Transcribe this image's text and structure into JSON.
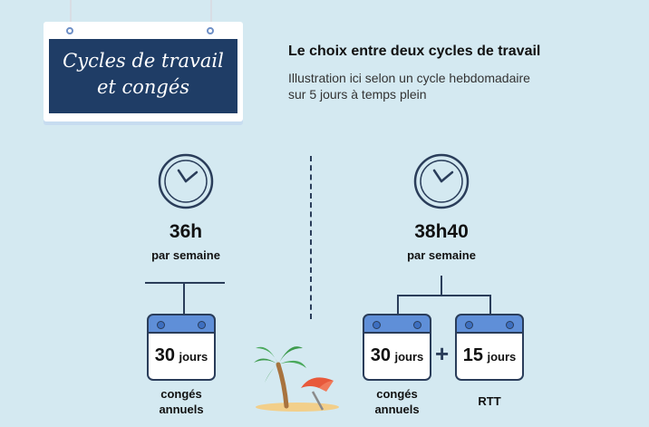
{
  "sign": {
    "line1": "Cycles de travail",
    "line2": "et congés"
  },
  "heading": "Le choix entre deux cycles de travail",
  "description_lines": [
    "Illustration ici selon un cycle hebdomadaire",
    "sur 5 jours à temps plein"
  ],
  "left": {
    "hours": "36h",
    "per": "par semaine",
    "calendar": {
      "number": "30",
      "unit": "jours",
      "label_line1": "congés",
      "label_line2": "annuels"
    }
  },
  "right": {
    "hours": "38h40",
    "per": "par semaine",
    "plus": "+",
    "calendars": [
      {
        "number": "30",
        "unit": "jours",
        "label_line1": "congés",
        "label_line2": "annuels"
      },
      {
        "number": "15",
        "unit": "jours",
        "label_line1": "RTT",
        "label_line2": ""
      }
    ]
  },
  "icons": [
    "clock-icon",
    "calendar-icon",
    "palm-tree-icon",
    "beach-umbrella-icon"
  ],
  "colors": {
    "background": "#d4e9f1",
    "sign": "#1f3d66",
    "calendar_header": "#5f8fd8",
    "line": "#2a3d5a"
  }
}
